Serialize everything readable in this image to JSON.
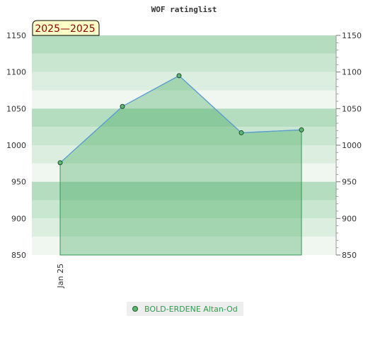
{
  "chart_data": {
    "type": "line",
    "title": "WOF ratinglist",
    "period_label": "2025—2025",
    "x_ticks": [
      "Jan 25"
    ],
    "y_ticks": [
      850,
      900,
      950,
      1000,
      1050,
      1100,
      1150
    ],
    "ylim": [
      850,
      1150
    ],
    "grid": true,
    "legend_position": "bottom-center",
    "series": [
      {
        "name": "BOLD-ERDENE Altan-Od",
        "color": "#2e9a4e",
        "line_color": "#5b9bd5",
        "values": [
          976,
          1053,
          1095,
          1017,
          1021
        ]
      }
    ]
  }
}
